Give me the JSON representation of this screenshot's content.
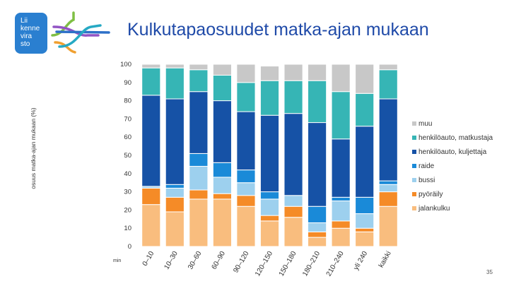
{
  "logo": {
    "lines": [
      "Lii",
      "kenne",
      "vira",
      "sto"
    ],
    "colors": {
      "box": "#2a7fd0",
      "arrow1": "#7fbf44",
      "arrow2": "#9254c4",
      "arrow3": "#f0a030",
      "arrow4": "#2d70c8",
      "arrow5": "#26a9c4"
    }
  },
  "title": "Kulkutapaosuudet matka-ajan mukaan",
  "page_number": "35",
  "chart_data": {
    "type": "bar",
    "stacked": true,
    "title": "Kulkutapaosuudet matka-ajan mukaan",
    "ylabel": "osuus matka-ajan mukaan (%)",
    "xunit": "min",
    "ylim": [
      0,
      100
    ],
    "yticks": [
      0,
      10,
      20,
      30,
      40,
      50,
      60,
      70,
      80,
      90,
      100
    ],
    "categories": [
      "0–10",
      "10–30",
      "30–60",
      "60–90",
      "90–120",
      "120–150",
      "150–180",
      "180–210",
      "210–240",
      "yli 240",
      "kaikki"
    ],
    "series": [
      {
        "name": "jalankulku",
        "color": "#f9bd7e",
        "values": [
          23,
          19,
          26,
          26,
          22,
          14,
          16,
          5,
          10,
          8,
          22
        ]
      },
      {
        "name": "pyöräily",
        "color": "#f58b27",
        "values": [
          9,
          8,
          5,
          3,
          6,
          3,
          6,
          3,
          4,
          2,
          8
        ]
      },
      {
        "name": "bussi",
        "color": "#9dd0ee",
        "values": [
          1,
          5,
          13,
          9,
          7,
          9,
          6,
          5,
          11,
          8,
          4
        ]
      },
      {
        "name": "raide",
        "color": "#1a8ad8",
        "values": [
          0,
          2,
          7,
          8,
          7,
          4,
          0,
          9,
          2,
          9,
          2
        ]
      },
      {
        "name": "henkilöauto, kuljettaja",
        "color": "#1652a6",
        "values": [
          50,
          47,
          34,
          34,
          32,
          42,
          45,
          46,
          32,
          39,
          45
        ]
      },
      {
        "name": "henkilöauto, matkustaja",
        "color": "#36b5b5",
        "values": [
          15,
          17,
          12,
          14,
          16,
          19,
          18,
          23,
          26,
          18,
          16
        ]
      },
      {
        "name": "muu",
        "color": "#c8c8c8",
        "values": [
          2,
          2,
          3,
          6,
          10,
          8,
          9,
          9,
          15,
          16,
          3
        ]
      }
    ],
    "legend_order": [
      "muu",
      "henkilöauto, matkustaja",
      "henkilöauto, kuljettaja",
      "raide",
      "bussi",
      "pyöräily",
      "jalankulku"
    ],
    "legend_position": "right",
    "grid": false
  }
}
